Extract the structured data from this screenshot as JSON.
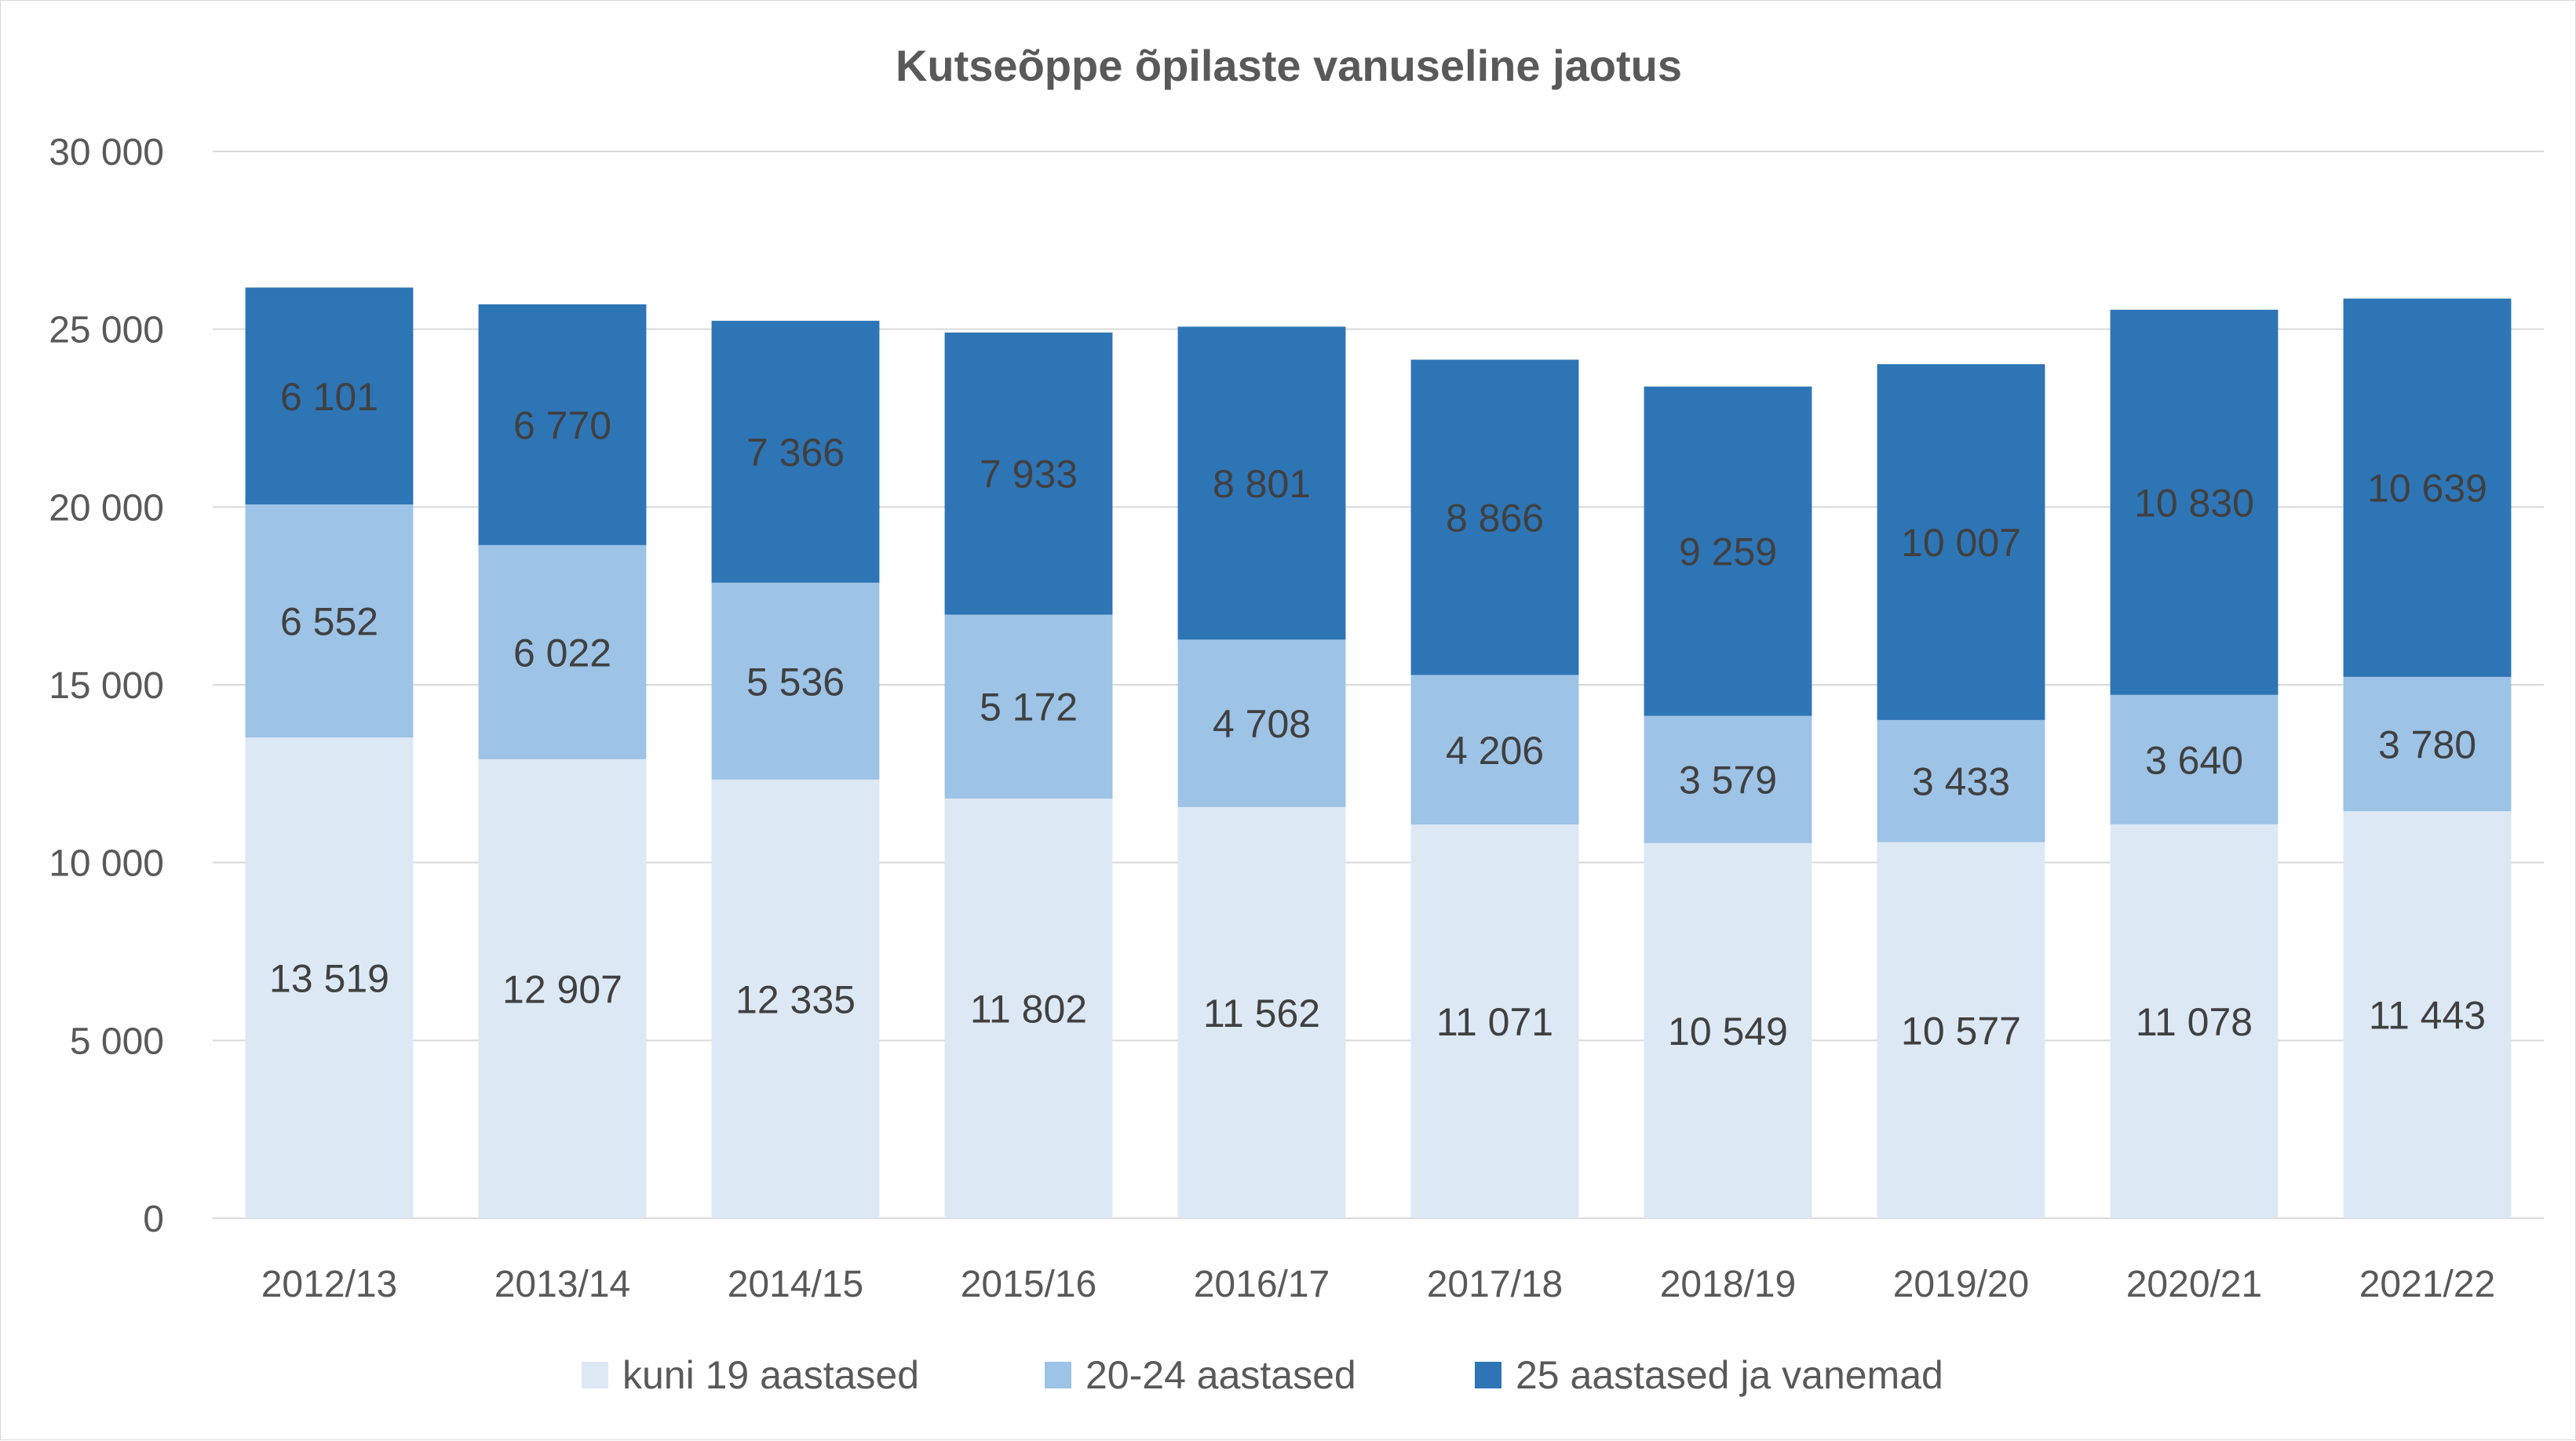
{
  "chart_data": {
    "type": "bar",
    "stacked": true,
    "title": "Kutseõppe õpilaste vanuseline jaotus",
    "xlabel": "",
    "ylabel": "",
    "ylim": [
      0,
      30000
    ],
    "yticks": [
      0,
      5000,
      10000,
      15000,
      20000,
      25000,
      30000
    ],
    "ytick_labels": [
      "0",
      "5 000",
      "10 000",
      "15 000",
      "20 000",
      "25 000",
      "30 000"
    ],
    "grid": true,
    "legend_position": "bottom",
    "categories": [
      "2012/13",
      "2013/14",
      "2014/15",
      "2015/16",
      "2016/17",
      "2017/18",
      "2018/19",
      "2019/20",
      "2020/21",
      "2021/22"
    ],
    "series": [
      {
        "name": "kuni 19 aastased",
        "color": "#dde8f5",
        "values": [
          13519,
          12907,
          12335,
          11802,
          11562,
          11071,
          10549,
          10577,
          11078,
          11443
        ],
        "labels": [
          "13 519",
          "12 907",
          "12 335",
          "11 802",
          "11 562",
          "11 071",
          "10 549",
          "10 577",
          "11 078",
          "11 443"
        ]
      },
      {
        "name": "20-24 aastased",
        "color": "#9dc3e6",
        "values": [
          6552,
          6022,
          5536,
          5172,
          4708,
          4206,
          3579,
          3433,
          3640,
          3780
        ],
        "labels": [
          "6 552",
          "6 022",
          "5 536",
          "5 172",
          "4 708",
          "4 206",
          "3 579",
          "3 433",
          "3 640",
          "3 780"
        ]
      },
      {
        "name": "25 aastased ja vanemad",
        "color": "#2e75b6",
        "values": [
          6101,
          6770,
          7366,
          7933,
          8801,
          8866,
          9259,
          10007,
          10830,
          10639
        ],
        "labels": [
          "6 101",
          "6 770",
          "7 366",
          "7 933",
          "8 801",
          "8 866",
          "9 259",
          "10 007",
          "10 830",
          "10 639"
        ]
      }
    ]
  }
}
